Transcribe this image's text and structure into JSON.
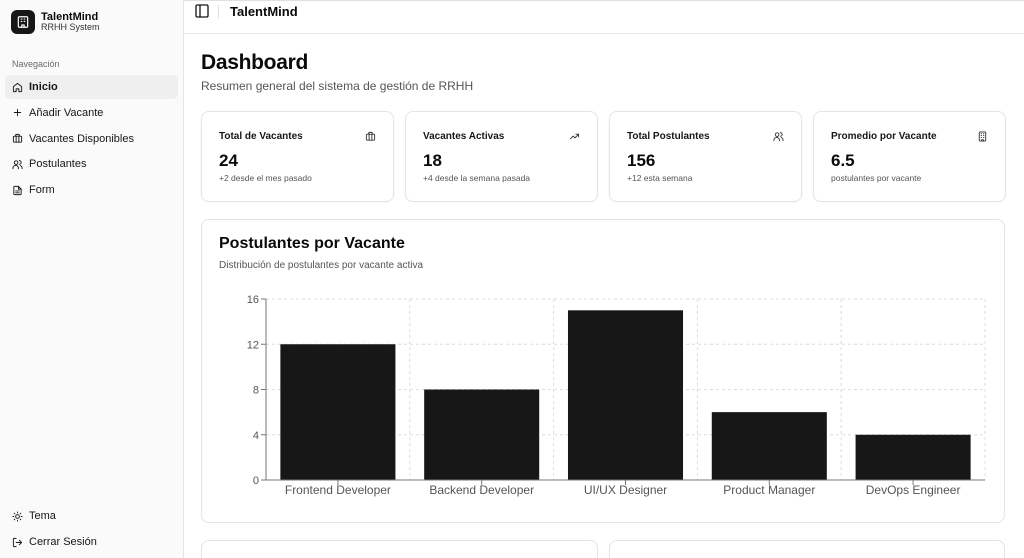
{
  "brand": {
    "name": "TalentMind",
    "subtitle": "RRHH System"
  },
  "sidebar": {
    "section_label": "Navegación",
    "items": [
      {
        "label": "Inicio",
        "icon": "home-icon",
        "active": true
      },
      {
        "label": "Añadir Vacante",
        "icon": "plus-icon"
      },
      {
        "label": "Vacantes Disponibles",
        "icon": "briefcase-icon"
      },
      {
        "label": "Postulantes",
        "icon": "users-icon"
      },
      {
        "label": "Form",
        "icon": "file-text-icon"
      }
    ],
    "bottom_items": [
      {
        "label": "Tema",
        "icon": "sun-icon"
      },
      {
        "label": "Cerrar Sesión",
        "icon": "logout-icon"
      }
    ]
  },
  "header": {
    "title": "TalentMind"
  },
  "main": {
    "title": "Dashboard",
    "subtitle": "Resumen general del sistema de gestión de RRHH"
  },
  "stats": [
    {
      "label": "Total de Vacantes",
      "value": "24",
      "note": "+2 desde el mes pasado",
      "icon": "briefcase-icon"
    },
    {
      "label": "Vacantes Activas",
      "value": "18",
      "note": "+4 desde la semana pasada",
      "icon": "trending-up-icon"
    },
    {
      "label": "Total Postulantes",
      "value": "156",
      "note": "+12 esta semana",
      "icon": "users-icon"
    },
    {
      "label": "Promedio por Vacante",
      "value": "6.5",
      "note": "postulantes por vacante",
      "icon": "building-icon"
    }
  ],
  "chart_card": {
    "title": "Postulantes por Vacante",
    "subtitle": "Distribución de postulantes por vacante activa"
  },
  "chart_data": {
    "type": "bar",
    "categories": [
      "Frontend Developer",
      "Backend Developer",
      "UI/UX Designer",
      "Product Manager",
      "DevOps Engineer"
    ],
    "values": [
      12,
      8,
      15,
      6,
      4
    ],
    "yticks": [
      0,
      4,
      8,
      12,
      16
    ],
    "ylim": [
      0,
      16
    ],
    "grid": true,
    "bar_color": "#171717"
  }
}
